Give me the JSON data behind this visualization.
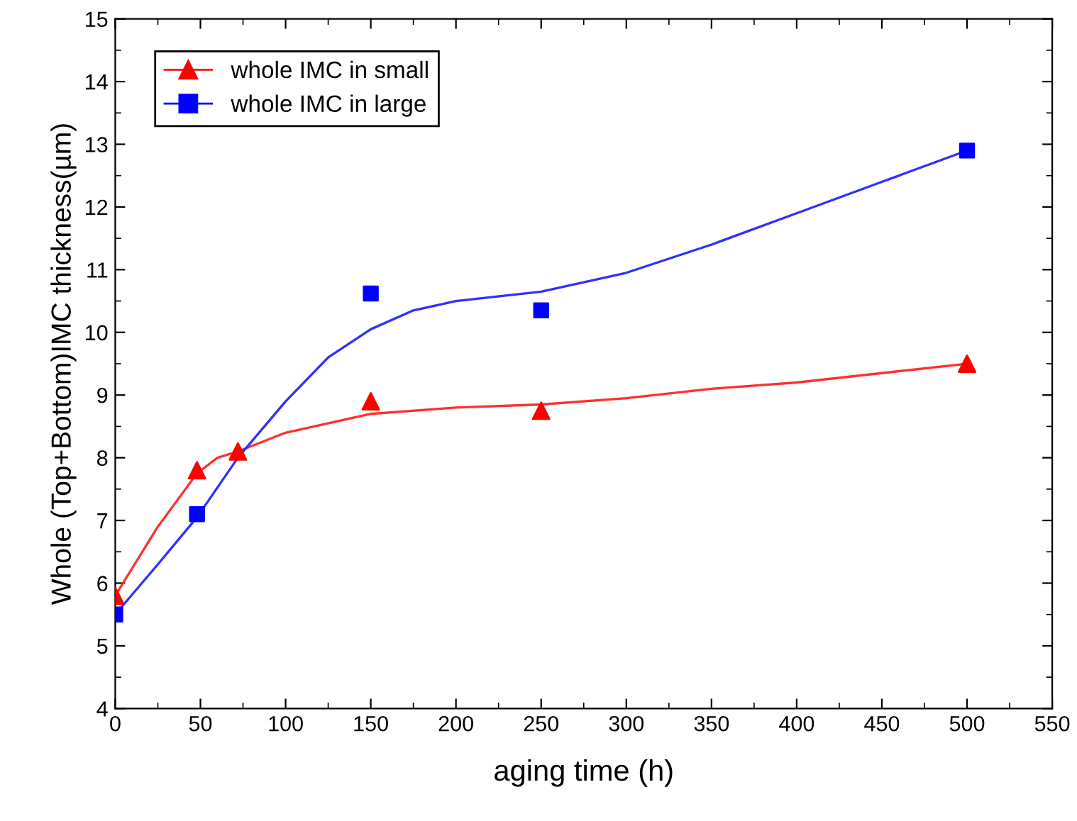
{
  "chart_data": {
    "type": "scatter",
    "xlabel": "aging time (h)",
    "ylabel": "Whole (Top+Bottom)IMC thickness(µm)",
    "xlim": [
      0,
      550
    ],
    "xticks": [
      0,
      50,
      100,
      150,
      200,
      250,
      300,
      350,
      400,
      450,
      500,
      550
    ],
    "ylim": [
      4,
      15
    ],
    "yticks": [
      4,
      5,
      6,
      7,
      8,
      9,
      10,
      11,
      12,
      13,
      14,
      15
    ],
    "grid": false,
    "legend": "top left",
    "series": [
      {
        "name": "whole IMC in small",
        "marker": "triangle",
        "color": "#ff0000",
        "x": [
          0,
          48,
          72,
          150,
          250,
          500
        ],
        "values": [
          5.8,
          7.8,
          8.1,
          8.9,
          8.75,
          9.5
        ]
      },
      {
        "name": "whole IMC in large",
        "marker": "square",
        "color": "#0000ff",
        "x": [
          0,
          48,
          150,
          250,
          500
        ],
        "values": [
          5.5,
          7.1,
          10.62,
          10.35,
          12.9
        ]
      },
      {
        "type": "line",
        "color": "#ff3030",
        "line_style": "solid",
        "x": [
          0,
          25,
          48,
          60,
          72,
          100,
          150,
          200,
          250,
          300,
          350,
          400,
          450,
          500
        ],
        "values": [
          5.8,
          6.9,
          7.75,
          8.0,
          8.1,
          8.4,
          8.7,
          8.8,
          8.85,
          8.95,
          9.1,
          9.2,
          9.35,
          9.5
        ]
      },
      {
        "type": "line",
        "color": "#3030ff",
        "line_style": "solid",
        "x": [
          0,
          25,
          48,
          72,
          100,
          125,
          150,
          175,
          200,
          250,
          300,
          350,
          400,
          450,
          500
        ],
        "values": [
          5.5,
          6.3,
          7.05,
          8.0,
          8.9,
          9.6,
          10.05,
          10.35,
          10.5,
          10.65,
          10.95,
          11.4,
          11.9,
          12.4,
          12.9
        ]
      }
    ]
  }
}
